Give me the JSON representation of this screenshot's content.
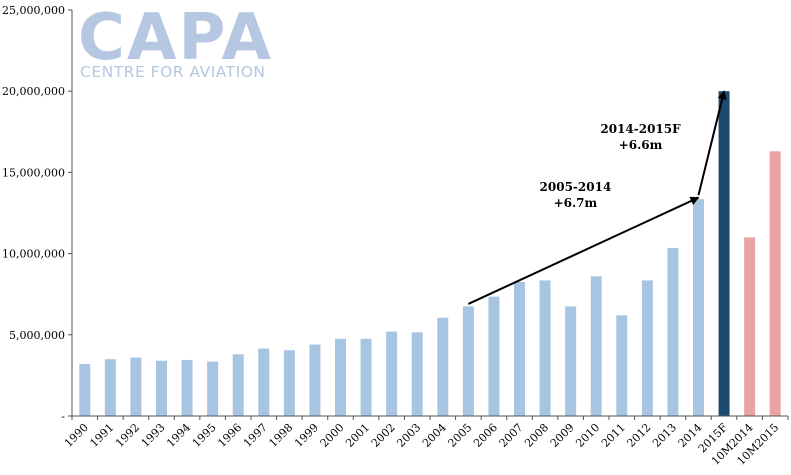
{
  "logo": {
    "wordmark": "CAPA",
    "tagline": "CENTRE FOR AVIATION"
  },
  "colors": {
    "historical": "#a8c4e3",
    "forecast": "#1e4a6f",
    "ytd": "#e9a3a3",
    "axis": "#555555",
    "arrow": "#000000"
  },
  "chart_data": {
    "type": "bar",
    "title": "",
    "xlabel": "",
    "ylabel": "",
    "ylim": [
      0,
      25000000
    ],
    "yticks": [
      0,
      5000000,
      10000000,
      15000000,
      20000000,
      25000000
    ],
    "ytick_labels": [
      "-",
      "5,000,000",
      "10,000,000",
      "15,000,000",
      "20,000,000",
      "25,000,000"
    ],
    "grid": false,
    "categories": [
      "1990",
      "1991",
      "1992",
      "1993",
      "1994",
      "1995",
      "1996",
      "1997",
      "1998",
      "1999",
      "2000",
      "2001",
      "2002",
      "2003",
      "2004",
      "2005",
      "2006",
      "2007",
      "2008",
      "2009",
      "2010",
      "2011",
      "2012",
      "2013",
      "2014",
      "2015F",
      "10M2014",
      "10M2015"
    ],
    "values": [
      3200000,
      3500000,
      3600000,
      3400000,
      3450000,
      3350000,
      3800000,
      4150000,
      4050000,
      4400000,
      4750000,
      4750000,
      5200000,
      5150000,
      6050000,
      6750000,
      7350000,
      8250000,
      8350000,
      6750000,
      8600000,
      6200000,
      8350000,
      10350000,
      13350000,
      20000000,
      11000000,
      16300000
    ],
    "bar_groups": [
      "historical",
      "historical",
      "historical",
      "historical",
      "historical",
      "historical",
      "historical",
      "historical",
      "historical",
      "historical",
      "historical",
      "historical",
      "historical",
      "historical",
      "historical",
      "historical",
      "historical",
      "historical",
      "historical",
      "historical",
      "historical",
      "historical",
      "historical",
      "historical",
      "historical",
      "forecast",
      "ytd",
      "ytd"
    ],
    "annotations": [
      {
        "lines": [
          "2005-2014",
          "+6.7m"
        ],
        "from": {
          "category": "2005",
          "value": 6900000
        },
        "to": {
          "category": "2014",
          "value": 13450000
        }
      },
      {
        "lines": [
          "2014-2015F",
          "+6.6m"
        ],
        "from": {
          "category": "2014",
          "value": 13600000
        },
        "to": {
          "category": "2015F",
          "value": 20000000
        }
      }
    ]
  }
}
